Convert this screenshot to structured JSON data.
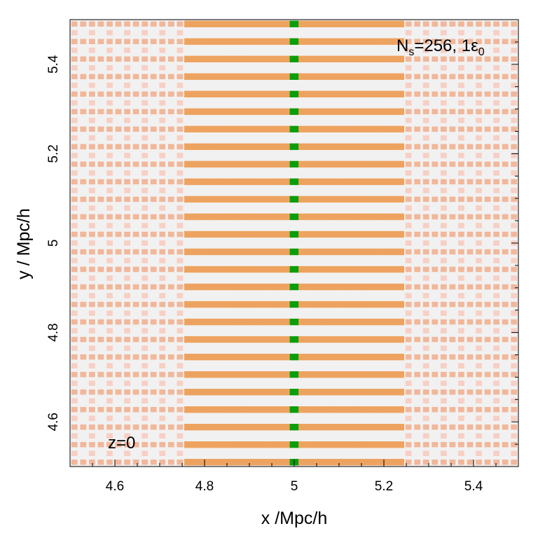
{
  "chart_data": {
    "type": "heatmap",
    "title": "",
    "xlabel": "x /Mpc/h",
    "ylabel": "y / Mpc/h",
    "xlim": [
      4.5,
      5.5
    ],
    "ylim": [
      4.5,
      5.5
    ],
    "x_ticks": [
      4.6,
      4.8,
      5.0,
      5.2,
      5.4
    ],
    "x_tick_labels": [
      "4.6",
      "4.8",
      "5",
      "5.2",
      "5.4"
    ],
    "y_ticks": [
      4.6,
      4.8,
      5.0,
      5.2,
      5.4
    ],
    "y_tick_labels": [
      "4.6",
      "4.8",
      "5",
      "5.2",
      "5.4"
    ],
    "annotation_top_right": {
      "prefix": "N",
      "prefix_sub": "s",
      "middle": "=256, 1",
      "epsilon": "ε",
      "epsilon_sub": "0"
    },
    "annotation_bottom_left": "z=0",
    "grid": {
      "x_min": 4.5,
      "x_max": 5.5,
      "dx": 0.0195,
      "y_min": 4.5,
      "y_max": 5.5,
      "dy": 0.0195,
      "row_period": 0.039
    },
    "filament": {
      "x_start": 4.75,
      "x_end": 5.25,
      "core_x": 5.0
    },
    "colors": {
      "background": "#f2f1f1",
      "faint": "#f7cfc4",
      "light": "#f1b79a",
      "mid": "#eda35f",
      "high": "#dcdc0e",
      "peak": "#0a9e0a"
    }
  }
}
